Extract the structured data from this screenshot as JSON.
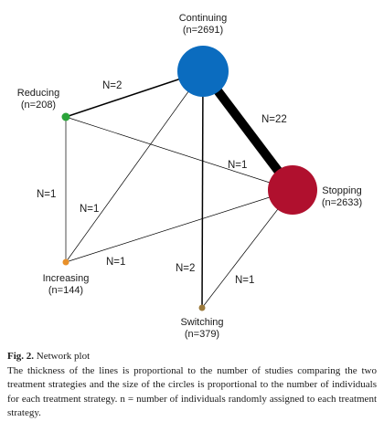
{
  "diagram": {
    "type": "network plot",
    "nodes": [
      {
        "id": "continuing",
        "name": "Continuing",
        "count": "(n=2691)",
        "n": 2691,
        "color": "#0b6cbf"
      },
      {
        "id": "reducing",
        "name": "Reducing",
        "count": "(n=208)",
        "n": 208,
        "color": "#2aa43a"
      },
      {
        "id": "stopping",
        "name": "Stopping",
        "count": "(n=2633)",
        "n": 2633,
        "color": "#b0102e"
      },
      {
        "id": "increasing",
        "name": "Increasing",
        "count": "(n=144)",
        "n": 144,
        "color": "#e8902a"
      },
      {
        "id": "switching",
        "name": "Switching",
        "count": "(n=379)",
        "n": 379,
        "color": "#9c7a3c"
      }
    ],
    "edges": [
      {
        "from": "continuing",
        "to": "stopping",
        "label": "N=22",
        "studies": 22
      },
      {
        "from": "continuing",
        "to": "reducing",
        "label": "N=2",
        "studies": 2
      },
      {
        "from": "continuing",
        "to": "switching",
        "label": "N=2",
        "studies": 2
      },
      {
        "from": "continuing",
        "to": "increasing",
        "label": "N=1",
        "studies": 1
      },
      {
        "from": "reducing",
        "to": "stopping",
        "label": "N=1",
        "studies": 1
      },
      {
        "from": "reducing",
        "to": "increasing",
        "label": "N=1",
        "studies": 1
      },
      {
        "from": "increasing",
        "to": "stopping",
        "label": "N=1",
        "studies": 1
      },
      {
        "from": "switching",
        "to": "stopping",
        "label": "N=1",
        "studies": 1
      }
    ]
  },
  "caption": {
    "figure_number": "Fig. 2.",
    "title": "Network plot",
    "text": "The thickness of the lines is proportional to the number of studies comparing the two treatment strategies and the size of the circles is proportional to the number of individuals for each treatment strategy. n = number of individuals randomly assigned to each treatment strategy."
  }
}
